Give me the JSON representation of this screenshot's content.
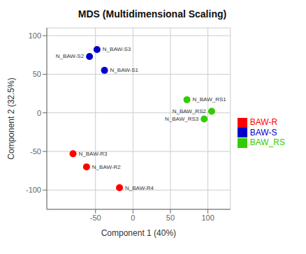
{
  "chart_data": {
    "type": "scatter",
    "title": "MDS (Multidimensional Scaling)",
    "xlabel": "Component 1 (40%)",
    "ylabel": "Component 2 (32.5%)",
    "xlim": [
      -115,
      130
    ],
    "ylim": [
      -125,
      110
    ],
    "xticks": [
      -50,
      0,
      50,
      100
    ],
    "yticks": [
      -100,
      -50,
      0,
      50,
      100
    ],
    "grid": true,
    "legend": "right",
    "series": [
      {
        "name": "BAW-R",
        "color": "#FF0000",
        "x": [
          -80,
          -62,
          -18
        ],
        "y": [
          -53,
          -70,
          -97
        ],
        "labels": [
          "N_BAW-R3",
          "N_BAW-R2",
          "N_BAW-R4"
        ]
      },
      {
        "name": "BAW_RS",
        "color": "#33CC00",
        "x": [
          72,
          105,
          95
        ],
        "y": [
          17,
          2,
          -8
        ],
        "labels": [
          "N_BAW_RS1",
          "N_BAW_RS2",
          "N_BAW_RS3"
        ]
      },
      {
        "name": "BAW-S",
        "color": "#0000CC",
        "x": [
          -48,
          -58,
          -38
        ],
        "y": [
          82,
          73,
          55
        ],
        "labels": [
          "N_BAW-S3",
          "N_BAW-S2",
          "N_BAW-S1"
        ]
      }
    ]
  }
}
